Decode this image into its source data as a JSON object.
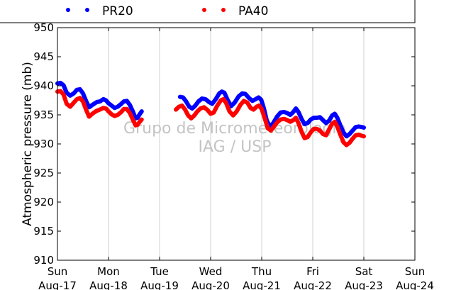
{
  "chart_data": {
    "type": "scatter",
    "ylabel": "Atmospheric pressure (mb)",
    "xlabel": "",
    "ylim": [
      910,
      950
    ],
    "yticks": [
      910,
      915,
      920,
      925,
      930,
      935,
      940,
      945,
      950
    ],
    "xlim": [
      0,
      7
    ],
    "x_units": "days since Sun Aug-17 00:00",
    "x_ticks": [
      {
        "day": "Sun",
        "date": "Aug-17"
      },
      {
        "day": "Mon",
        "date": "Aug-18"
      },
      {
        "day": "Tue",
        "date": "Aug-19"
      },
      {
        "day": "Wed",
        "date": "Aug-20"
      },
      {
        "day": "Thu",
        "date": "Aug-21"
      },
      {
        "day": "Fri",
        "date": "Aug-22"
      },
      {
        "day": "Sat",
        "date": "Aug-23"
      },
      {
        "day": "Sun",
        "date": "Aug-24"
      }
    ],
    "grid": "vertical",
    "legend_position": "top, above plot",
    "watermark": [
      "Grupo de Micrometeorologia",
      "IAG / USP"
    ],
    "series": [
      {
        "name": "PR20",
        "color": "#0000ff",
        "segments": [
          [
            [
              0.0,
              940.4
            ],
            [
              0.06,
              940.5
            ],
            [
              0.12,
              940.1
            ],
            [
              0.18,
              938.8
            ],
            [
              0.25,
              938.3
            ],
            [
              0.32,
              938.7
            ],
            [
              0.38,
              939.3
            ],
            [
              0.44,
              939.4
            ],
            [
              0.5,
              938.7
            ],
            [
              0.56,
              937.4
            ],
            [
              0.62,
              936.3
            ],
            [
              0.7,
              936.8
            ],
            [
              0.77,
              937.2
            ],
            [
              0.83,
              937.3
            ],
            [
              0.9,
              937.7
            ],
            [
              0.95,
              937.5
            ],
            [
              1.0,
              937.0
            ],
            [
              1.06,
              936.6
            ],
            [
              1.12,
              936.2
            ],
            [
              1.18,
              936.4
            ],
            [
              1.25,
              936.9
            ],
            [
              1.3,
              937.3
            ],
            [
              1.36,
              937.4
            ],
            [
              1.42,
              936.7
            ],
            [
              1.48,
              935.5
            ],
            [
              1.53,
              934.4
            ],
            [
              1.57,
              934.5
            ],
            [
              1.61,
              935.1
            ],
            [
              1.65,
              935.6
            ]
          ],
          [
            [
              2.4,
              938.1
            ],
            [
              2.46,
              938.0
            ],
            [
              2.52,
              937.3
            ],
            [
              2.58,
              936.4
            ],
            [
              2.64,
              936.1
            ],
            [
              2.7,
              936.6
            ],
            [
              2.76,
              937.3
            ],
            [
              2.83,
              937.8
            ],
            [
              2.9,
              937.7
            ],
            [
              2.97,
              937.2
            ],
            [
              3.03,
              936.9
            ],
            [
              3.1,
              937.7
            ],
            [
              3.17,
              938.7
            ],
            [
              3.22,
              939.0
            ],
            [
              3.27,
              938.8
            ],
            [
              3.33,
              937.6
            ],
            [
              3.4,
              936.5
            ],
            [
              3.47,
              937.1
            ],
            [
              3.55,
              938.2
            ],
            [
              3.62,
              938.7
            ],
            [
              3.68,
              938.6
            ],
            [
              3.75,
              937.9
            ],
            [
              3.82,
              937.4
            ],
            [
              3.88,
              937.7
            ],
            [
              3.94,
              938.0
            ],
            [
              3.99,
              937.6
            ],
            [
              4.04,
              936.2
            ],
            [
              4.1,
              934.0
            ],
            [
              4.16,
              933.0
            ],
            [
              4.22,
              933.5
            ],
            [
              4.3,
              934.7
            ],
            [
              4.37,
              935.4
            ],
            [
              4.44,
              935.5
            ],
            [
              4.5,
              935.3
            ],
            [
              4.56,
              935.0
            ],
            [
              4.62,
              935.5
            ],
            [
              4.67,
              936.1
            ],
            [
              4.72,
              935.5
            ],
            [
              4.78,
              934.3
            ],
            [
              4.84,
              933.4
            ],
            [
              4.9,
              933.6
            ],
            [
              4.96,
              934.2
            ],
            [
              5.02,
              934.5
            ],
            [
              5.08,
              934.5
            ],
            [
              5.14,
              934.6
            ],
            [
              5.2,
              934.1
            ],
            [
              5.26,
              933.6
            ],
            [
              5.32,
              934.0
            ],
            [
              5.38,
              934.9
            ],
            [
              5.43,
              935.2
            ],
            [
              5.48,
              934.5
            ],
            [
              5.54,
              933.2
            ],
            [
              5.6,
              932.0
            ],
            [
              5.66,
              931.3
            ],
            [
              5.72,
              931.7
            ],
            [
              5.78,
              932.3
            ],
            [
              5.84,
              932.9
            ],
            [
              5.9,
              933.0
            ],
            [
              5.96,
              932.9
            ],
            [
              6.0,
              932.8
            ]
          ]
        ]
      },
      {
        "name": "PA40",
        "color": "#ff0000",
        "segments": [
          [
            [
              0.0,
              939.0
            ],
            [
              0.06,
              939.1
            ],
            [
              0.12,
              938.5
            ],
            [
              0.18,
              936.9
            ],
            [
              0.25,
              936.4
            ],
            [
              0.32,
              937.1
            ],
            [
              0.38,
              937.7
            ],
            [
              0.44,
              937.9
            ],
            [
              0.5,
              937.3
            ],
            [
              0.56,
              935.9
            ],
            [
              0.62,
              934.7
            ],
            [
              0.7,
              935.3
            ],
            [
              0.77,
              935.7
            ],
            [
              0.83,
              935.9
            ],
            [
              0.9,
              936.2
            ],
            [
              0.95,
              936.1
            ],
            [
              1.0,
              935.6
            ],
            [
              1.06,
              935.1
            ],
            [
              1.12,
              934.8
            ],
            [
              1.18,
              935.0
            ],
            [
              1.25,
              935.5
            ],
            [
              1.3,
              936.0
            ],
            [
              1.36,
              936.0
            ],
            [
              1.42,
              935.3
            ],
            [
              1.48,
              934.1
            ],
            [
              1.53,
              933.2
            ],
            [
              1.57,
              933.3
            ],
            [
              1.61,
              933.8
            ],
            [
              1.65,
              934.2
            ]
          ],
          [
            [
              2.32,
              935.9
            ],
            [
              2.38,
              936.4
            ],
            [
              2.44,
              936.6
            ],
            [
              2.5,
              935.9
            ],
            [
              2.56,
              934.9
            ],
            [
              2.62,
              934.4
            ],
            [
              2.68,
              934.9
            ],
            [
              2.74,
              935.6
            ],
            [
              2.8,
              936.1
            ],
            [
              2.87,
              936.3
            ],
            [
              2.93,
              935.9
            ],
            [
              3.0,
              935.2
            ],
            [
              3.06,
              935.4
            ],
            [
              3.13,
              936.6
            ],
            [
              3.2,
              937.5
            ],
            [
              3.25,
              937.7
            ],
            [
              3.3,
              937.1
            ],
            [
              3.37,
              935.6
            ],
            [
              3.44,
              934.9
            ],
            [
              3.51,
              935.6
            ],
            [
              3.58,
              936.7
            ],
            [
              3.65,
              937.4
            ],
            [
              3.72,
              937.1
            ],
            [
              3.78,
              936.2
            ],
            [
              3.84,
              935.9
            ],
            [
              3.9,
              936.4
            ],
            [
              3.95,
              936.6
            ],
            [
              4.0,
              936.0
            ],
            [
              4.06,
              934.4
            ],
            [
              4.12,
              932.7
            ],
            [
              4.18,
              932.3
            ],
            [
              4.24,
              933.0
            ],
            [
              4.3,
              933.7
            ],
            [
              4.37,
              934.2
            ],
            [
              4.44,
              934.3
            ],
            [
              4.5,
              934.1
            ],
            [
              4.56,
              933.8
            ],
            [
              4.62,
              934.1
            ],
            [
              4.67,
              934.5
            ],
            [
              4.72,
              933.6
            ],
            [
              4.78,
              932.1
            ],
            [
              4.84,
              931.0
            ],
            [
              4.9,
              931.2
            ],
            [
              4.96,
              932.0
            ],
            [
              5.02,
              932.6
            ],
            [
              5.08,
              932.6
            ],
            [
              5.14,
              932.3
            ],
            [
              5.2,
              931.7
            ],
            [
              5.26,
              931.5
            ],
            [
              5.32,
              932.5
            ],
            [
              5.38,
              933.5
            ],
            [
              5.43,
              933.8
            ],
            [
              5.48,
              933.0
            ],
            [
              5.54,
              931.6
            ],
            [
              5.6,
              930.3
            ],
            [
              5.66,
              929.8
            ],
            [
              5.72,
              930.2
            ],
            [
              5.78,
              930.9
            ],
            [
              5.84,
              931.5
            ],
            [
              5.9,
              931.6
            ],
            [
              5.96,
              931.4
            ],
            [
              6.0,
              931.3
            ]
          ]
        ]
      }
    ]
  }
}
